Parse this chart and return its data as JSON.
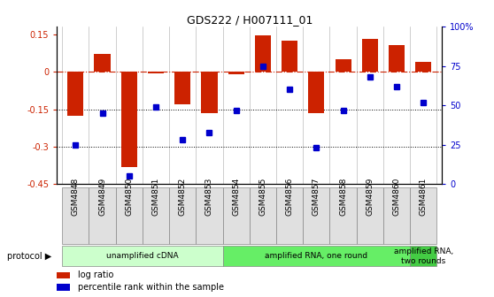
{
  "title": "GDS222 / H007111_01",
  "samples": [
    "GSM4848",
    "GSM4849",
    "GSM4850",
    "GSM4851",
    "GSM4852",
    "GSM4853",
    "GSM4854",
    "GSM4855",
    "GSM4856",
    "GSM4857",
    "GSM4858",
    "GSM4859",
    "GSM4860",
    "GSM4861"
  ],
  "log_ratio": [
    -0.175,
    0.07,
    -0.38,
    -0.005,
    -0.13,
    -0.165,
    -0.01,
    0.145,
    0.125,
    -0.165,
    0.05,
    0.13,
    0.105,
    0.04
  ],
  "percentile": [
    25,
    45,
    5,
    49,
    28,
    33,
    47,
    75,
    60,
    23,
    47,
    68,
    62,
    52
  ],
  "ylim_left": [
    -0.45,
    0.18
  ],
  "ylim_right": [
    0,
    100
  ],
  "bar_color": "#cc2200",
  "dot_color": "#0000cc",
  "hline_color": "#cc2200",
  "dotted_lines": [
    -0.15,
    -0.3
  ],
  "right_ticks": [
    0,
    25,
    50,
    75,
    100
  ],
  "right_tick_labels": [
    "0",
    "25",
    "50",
    "75",
    "100%"
  ],
  "left_ticks": [
    -0.45,
    -0.3,
    -0.15,
    0,
    0.15
  ],
  "protocols": [
    {
      "label": "unamplified cDNA",
      "start": 0,
      "end": 6,
      "color": "#ccffcc"
    },
    {
      "label": "amplified RNA, one round",
      "start": 6,
      "end": 13,
      "color": "#66ee66"
    },
    {
      "label": "amplified RNA,\ntwo rounds",
      "start": 13,
      "end": 14,
      "color": "#44cc44"
    }
  ],
  "protocol_label": "protocol",
  "legend_items": [
    {
      "color": "#cc2200",
      "label": "log ratio"
    },
    {
      "color": "#0000cc",
      "label": "percentile rank within the sample"
    }
  ],
  "background_color": "#ffffff"
}
